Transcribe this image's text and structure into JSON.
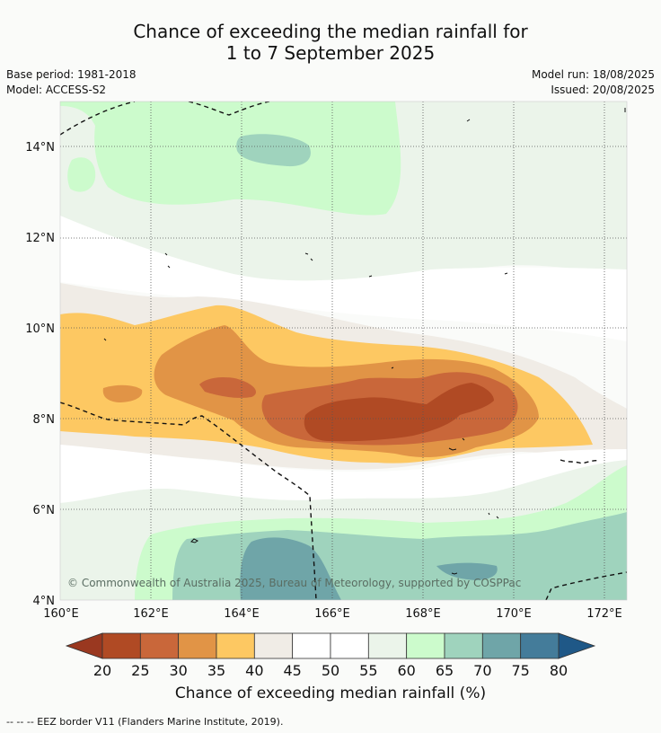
{
  "title": {
    "line1": "Chance of exceeding the median rainfall for",
    "line2": "1 to 7 September 2025"
  },
  "meta": {
    "base_period": "Base period: 1981-2018",
    "model": "Model: ACCESS-S2",
    "model_run": "Model run: 18/08/2025",
    "issued": "Issued: 20/08/2025"
  },
  "axes": {
    "lat_labels": [
      "14°N",
      "12°N",
      "10°N",
      "8°N",
      "6°N",
      "4°N"
    ],
    "lon_labels": [
      "160°E",
      "162°E",
      "164°E",
      "166°E",
      "168°E",
      "170°E",
      "172°E"
    ]
  },
  "colorbar": {
    "ticks": [
      "20",
      "25",
      "30",
      "35",
      "40",
      "45",
      "50",
      "55",
      "60",
      "65",
      "70",
      "75",
      "80"
    ],
    "colors": [
      "#b04a24",
      "#c9673a",
      "#e19446",
      "#fdc862",
      "#f0ece6",
      "#ffffff",
      "#ffffff",
      "#ebf4ea",
      "#ccfbcc",
      "#9fd3bd",
      "#6fa5a8",
      "#447c9a"
    ],
    "low_end_color": "#9a3820",
    "high_end_color": "#1f5887",
    "label": "Chance of exceeding median rainfall (%)"
  },
  "attribution": "© Commonwealth of Australia 2025, Bureau of Meteorology, supported by COSPPac",
  "legend_footer": "--  --  -- EEZ border V11 (Flanders Marine Institute, 2019)."
}
